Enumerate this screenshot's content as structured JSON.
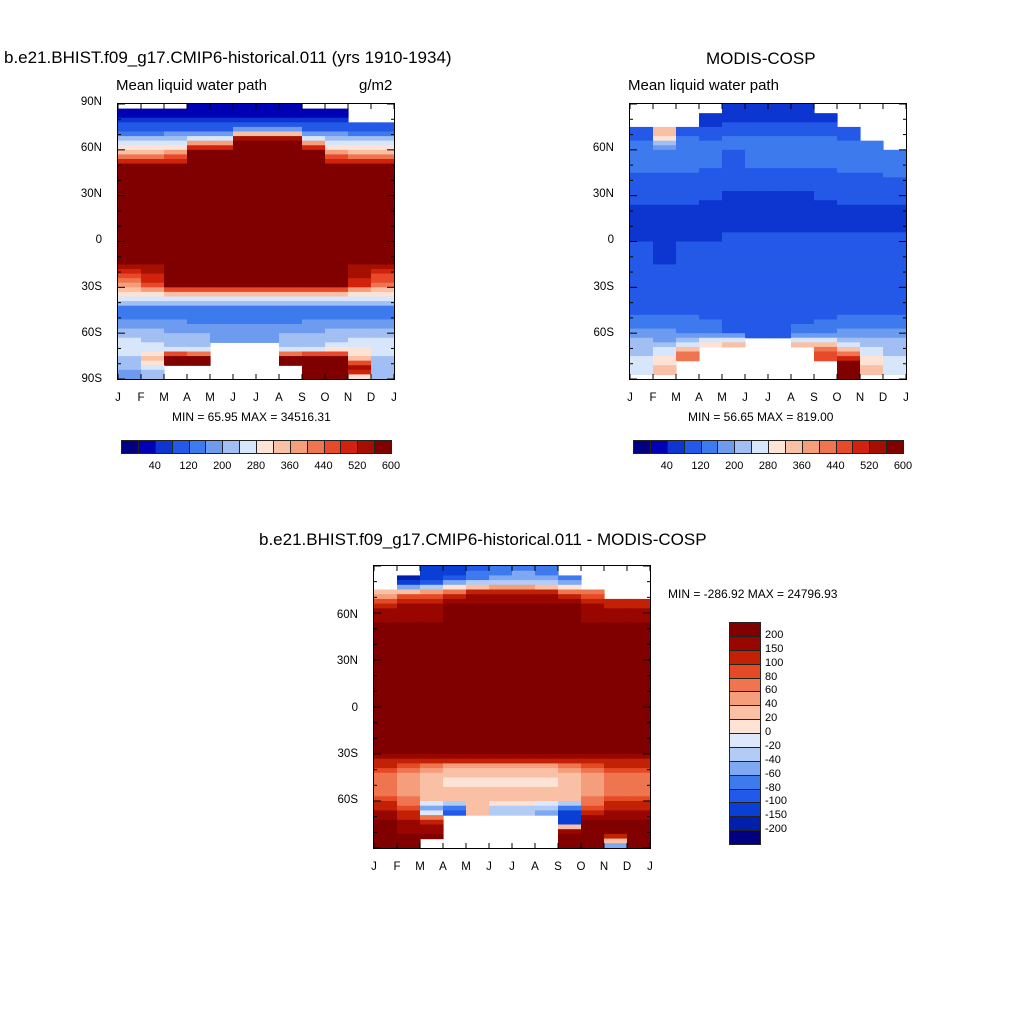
{
  "chart_data": [
    {
      "type": "heatmap",
      "id": "model",
      "title": "b.e21.BHIST.f09_g17.CMIP6-historical.011 (yrs 1910-1934)",
      "left_label": "Mean liquid water path",
      "right_label": "g/m2",
      "stats": "MIN =  65.95 MAX = 34516.31",
      "x_ticks": [
        "J",
        "F",
        "M",
        "A",
        "M",
        "J",
        "J",
        "A",
        "S",
        "O",
        "N",
        "D",
        "J"
      ],
      "y_ticks": [
        "90N",
        "60N",
        "30N",
        "0",
        "30S",
        "60S",
        "90S"
      ],
      "ylim": [
        -90,
        90
      ],
      "zones": [
        {
          "lat": 90,
          "vals": [
            null,
            null,
            null,
            60,
            60,
            60,
            60,
            60,
            null,
            null,
            null,
            null
          ]
        },
        {
          "lat": 82,
          "vals": [
            60,
            60,
            60,
            60,
            60,
            60,
            60,
            60,
            60,
            60,
            null,
            null
          ]
        },
        {
          "lat": 74,
          "vals": [
            120,
            120,
            120,
            120,
            120,
            150,
            150,
            150,
            120,
            120,
            120,
            120
          ]
        },
        {
          "lat": 67,
          "vals": [
            240,
            240,
            260,
            280,
            300,
            600,
            600,
            600,
            300,
            260,
            240,
            240
          ]
        },
        {
          "lat": 60,
          "vals": [
            330,
            340,
            360,
            600,
            600,
            600,
            600,
            600,
            600,
            360,
            330,
            330
          ]
        },
        {
          "lat": 50,
          "vals": [
            600,
            600,
            600,
            600,
            600,
            600,
            600,
            600,
            600,
            600,
            600,
            600
          ]
        },
        {
          "lat": 0,
          "vals": [
            600,
            600,
            600,
            600,
            600,
            600,
            600,
            600,
            600,
            600,
            600,
            600
          ]
        },
        {
          "lat": -12,
          "vals": [
            600,
            600,
            600,
            600,
            600,
            600,
            600,
            600,
            600,
            600,
            600,
            600
          ]
        },
        {
          "lat": -28,
          "vals": [
            400,
            500,
            600,
            600,
            600,
            600,
            600,
            600,
            600,
            600,
            520,
            440
          ]
        },
        {
          "lat": -35,
          "vals": [
            320,
            320,
            330,
            330,
            330,
            330,
            330,
            340,
            340,
            330,
            320,
            320
          ]
        },
        {
          "lat": -45,
          "vals": [
            150,
            150,
            140,
            140,
            140,
            140,
            140,
            140,
            140,
            150,
            150,
            150
          ]
        },
        {
          "lat": -55,
          "vals": [
            210,
            200,
            200,
            190,
            180,
            180,
            180,
            190,
            200,
            210,
            210,
            210
          ]
        },
        {
          "lat": -63,
          "vals": [
            260,
            250,
            240,
            230,
            220,
            220,
            220,
            230,
            240,
            250,
            260,
            260
          ]
        },
        {
          "lat": -70,
          "vals": [
            300,
            280,
            270,
            250,
            null,
            null,
            null,
            250,
            270,
            290,
            300,
            300
          ]
        },
        {
          "lat": -76,
          "vals": [
            240,
            360,
            600,
            600,
            null,
            null,
            null,
            600,
            600,
            600,
            360,
            240
          ]
        },
        {
          "lat": -84,
          "vals": [
            220,
            260,
            null,
            null,
            null,
            null,
            null,
            null,
            600,
            600,
            600,
            260
          ]
        },
        {
          "lat": -90,
          "vals": [
            220,
            240,
            null,
            null,
            null,
            null,
            null,
            null,
            600,
            600,
            240,
            220
          ]
        }
      ]
    },
    {
      "type": "heatmap",
      "id": "obs",
      "title": "MODIS-COSP",
      "left_label": "Mean liquid water path",
      "right_label": "",
      "stats": "MIN =  56.65 MAX = 819.00",
      "x_ticks": [
        "J",
        "F",
        "M",
        "A",
        "M",
        "J",
        "J",
        "A",
        "S",
        "O",
        "N",
        "D",
        "J"
      ],
      "y_ticks": [
        "60N",
        "30N",
        "0",
        "30S",
        "60S"
      ],
      "ylim": [
        -90,
        90
      ],
      "zones": [
        {
          "lat": 90,
          "vals": [
            null,
            null,
            null,
            null,
            60,
            60,
            60,
            60,
            null,
            null,
            null,
            null
          ]
        },
        {
          "lat": 80,
          "vals": [
            null,
            null,
            null,
            80,
            90,
            90,
            90,
            90,
            80,
            null,
            null,
            null
          ]
        },
        {
          "lat": 70,
          "vals": [
            120,
            360,
            140,
            130,
            140,
            140,
            140,
            140,
            140,
            120,
            null,
            null
          ]
        },
        {
          "lat": 62,
          "vals": [
            150,
            200,
            170,
            160,
            160,
            160,
            160,
            160,
            160,
            160,
            160,
            null
          ]
        },
        {
          "lat": 55,
          "vals": [
            160,
            160,
            160,
            160,
            120,
            160,
            160,
            160,
            160,
            160,
            170,
            180
          ]
        },
        {
          "lat": 40,
          "vals": [
            130,
            130,
            130,
            120,
            110,
            110,
            110,
            110,
            120,
            130,
            130,
            130
          ]
        },
        {
          "lat": 15,
          "vals": [
            80,
            80,
            80,
            80,
            80,
            80,
            80,
            80,
            80,
            80,
            80,
            80
          ]
        },
        {
          "lat": 0,
          "vals": [
            100,
            80,
            100,
            100,
            110,
            120,
            110,
            110,
            110,
            110,
            110,
            110
          ]
        },
        {
          "lat": -30,
          "vals": [
            120,
            120,
            120,
            120,
            120,
            120,
            120,
            120,
            120,
            120,
            120,
            120
          ]
        },
        {
          "lat": -45,
          "vals": [
            130,
            130,
            130,
            130,
            130,
            130,
            130,
            130,
            130,
            130,
            130,
            130
          ]
        },
        {
          "lat": -60,
          "vals": [
            200,
            190,
            180,
            160,
            140,
            140,
            140,
            150,
            160,
            190,
            200,
            200
          ]
        },
        {
          "lat": -67,
          "vals": [
            240,
            230,
            280,
            340,
            360,
            null,
            null,
            360,
            350,
            250,
            250,
            240
          ]
        },
        {
          "lat": -74,
          "vals": [
            260,
            300,
            460,
            null,
            null,
            null,
            null,
            null,
            500,
            440,
            280,
            260
          ]
        },
        {
          "lat": -82,
          "vals": [
            280,
            350,
            null,
            null,
            null,
            null,
            null,
            null,
            null,
            700,
            360,
            280
          ]
        },
        {
          "lat": -90,
          "vals": [
            null,
            null,
            null,
            null,
            null,
            null,
            null,
            null,
            null,
            700,
            null,
            null
          ]
        }
      ]
    },
    {
      "type": "heatmap",
      "id": "diff",
      "title": "b.e21.BHIST.f09_g17.CMIP6-historical.011 - MODIS-COSP",
      "stats": "MIN = -286.92 MAX = 24796.93",
      "x_ticks": [
        "J",
        "F",
        "M",
        "A",
        "M",
        "J",
        "J",
        "A",
        "S",
        "O",
        "N",
        "D",
        "J"
      ],
      "y_ticks": [
        "60N",
        "30N",
        "0",
        "30S",
        "60S"
      ],
      "ylim": [
        -90,
        90
      ],
      "zones": [
        {
          "lat": 90,
          "vals": [
            null,
            null,
            -120,
            -150,
            -100,
            -80,
            -70,
            -80,
            null,
            null,
            null,
            null
          ]
        },
        {
          "lat": 80,
          "vals": [
            null,
            -150,
            -100,
            -60,
            -50,
            -40,
            -40,
            -50,
            -70,
            null,
            null,
            null
          ]
        },
        {
          "lat": 72,
          "vals": [
            40,
            60,
            80,
            100,
            150,
            150,
            150,
            150,
            100,
            80,
            null,
            null
          ]
        },
        {
          "lat": 66,
          "vals": [
            120,
            150,
            150,
            200,
            200,
            200,
            200,
            200,
            200,
            150,
            120,
            120
          ]
        },
        {
          "lat": 55,
          "vals": [
            200,
            200,
            200,
            200,
            200,
            200,
            200,
            200,
            200,
            200,
            200,
            200
          ]
        },
        {
          "lat": -30,
          "vals": [
            200,
            200,
            200,
            200,
            200,
            200,
            200,
            200,
            200,
            200,
            200,
            200
          ]
        },
        {
          "lat": -38,
          "vals": [
            100,
            80,
            60,
            40,
            40,
            40,
            40,
            40,
            60,
            80,
            100,
            100
          ]
        },
        {
          "lat": -48,
          "vals": [
            60,
            40,
            20,
            10,
            10,
            10,
            10,
            10,
            20,
            40,
            60,
            60
          ]
        },
        {
          "lat": -58,
          "vals": [
            80,
            60,
            40,
            40,
            40,
            40,
            40,
            40,
            40,
            60,
            80,
            80
          ]
        },
        {
          "lat": -65,
          "vals": [
            150,
            100,
            -60,
            -80,
            40,
            -30,
            -30,
            -40,
            -80,
            100,
            150,
            150
          ]
        },
        {
          "lat": -73,
          "vals": [
            200,
            150,
            120,
            null,
            null,
            null,
            null,
            null,
            -150,
            200,
            200,
            200
          ]
        },
        {
          "lat": -80,
          "vals": [
            200,
            200,
            200,
            null,
            null,
            null,
            null,
            null,
            200,
            200,
            200,
            200
          ]
        },
        {
          "lat": -90,
          "vals": [
            200,
            200,
            null,
            null,
            null,
            null,
            null,
            null,
            200,
            200,
            -100,
            200
          ]
        }
      ]
    }
  ],
  "colorbar_seq": {
    "labels": [
      "40",
      "120",
      "200",
      "280",
      "360",
      "440",
      "520",
      "600"
    ],
    "levels": [
      20,
      40,
      60,
      80,
      100,
      120,
      140,
      160,
      180,
      200,
      220,
      240,
      260,
      280,
      300,
      320,
      340,
      360,
      380,
      400,
      420,
      440,
      460,
      480,
      500,
      520,
      540,
      560,
      580,
      600
    ],
    "colors": [
      "#000080",
      "#0000b5",
      "#0d35d0",
      "#2459e8",
      "#3c7aee",
      "#6d9bf0",
      "#a2bff4",
      "#d7e6fb",
      "#fde3d5",
      "#f9c0a5",
      "#f49e7c",
      "#ee7550",
      "#e8492b",
      "#d1230c",
      "#a40f00",
      "#800000"
    ]
  },
  "colorbar_diff": {
    "labels": [
      "200",
      "150",
      "100",
      "80",
      "60",
      "40",
      "20",
      "0",
      "-20",
      "-40",
      "-60",
      "-80",
      "-100",
      "-150",
      "-200"
    ],
    "levels": [
      -200,
      -150,
      -100,
      -80,
      -60,
      -40,
      -20,
      0,
      20,
      40,
      60,
      80,
      100,
      150,
      200
    ],
    "colors": [
      "#000080",
      "#001faa",
      "#0a3fd6",
      "#2159ea",
      "#3c7aee",
      "#7ea8f2",
      "#b2ccf5",
      "#dde8fb",
      "#fde3d5",
      "#f9c0a5",
      "#f49e7c",
      "#ee7550",
      "#e64a25",
      "#c22105",
      "#990600",
      "#800000"
    ]
  }
}
